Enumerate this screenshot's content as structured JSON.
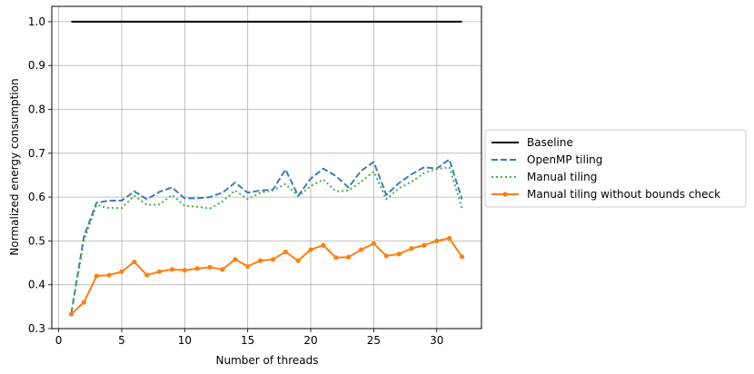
{
  "chart_data": {
    "type": "line",
    "title": "",
    "xlabel": "Number of threads",
    "ylabel": "Normalized energy consumption",
    "xlim": [
      -0.55,
      33.55
    ],
    "ylim": [
      0.3,
      1.035
    ],
    "xticks": [
      0,
      5,
      10,
      15,
      20,
      25,
      30
    ],
    "yticks": [
      0.3,
      0.4,
      0.5,
      0.6,
      0.7,
      0.8,
      0.9,
      1.0
    ],
    "xtick_labels": [
      "0",
      "5",
      "10",
      "15",
      "20",
      "25",
      "30"
    ],
    "ytick_labels": [
      "0.3",
      "0.4",
      "0.5",
      "0.6",
      "0.7",
      "0.8",
      "0.9",
      "1.0"
    ],
    "grid": true,
    "legend_position": "outside-right",
    "x": [
      1,
      2,
      3,
      4,
      5,
      6,
      7,
      8,
      9,
      10,
      11,
      12,
      13,
      14,
      15,
      16,
      17,
      18,
      19,
      20,
      21,
      22,
      23,
      24,
      25,
      26,
      27,
      28,
      29,
      30,
      31,
      32
    ],
    "series": [
      {
        "name": "Baseline",
        "color": "#000000",
        "style": "solid",
        "marker": "none",
        "values": [
          1,
          1,
          1,
          1,
          1,
          1,
          1,
          1,
          1,
          1,
          1,
          1,
          1,
          1,
          1,
          1,
          1,
          1,
          1,
          1,
          1,
          1,
          1,
          1,
          1,
          1,
          1,
          1,
          1,
          1,
          1,
          1
        ]
      },
      {
        "name": "OpenMP tiling",
        "color": "#3a7fb5",
        "style": "dashed",
        "marker": "none",
        "values": [
          0.335,
          0.51,
          0.587,
          0.592,
          0.592,
          0.613,
          0.595,
          0.612,
          0.622,
          0.597,
          0.597,
          0.6,
          0.61,
          0.633,
          0.61,
          0.615,
          0.617,
          0.663,
          0.603,
          0.642,
          0.665,
          0.648,
          0.622,
          0.66,
          0.68,
          0.605,
          0.632,
          0.652,
          0.668,
          0.665,
          0.686,
          0.595
        ]
      },
      {
        "name": "Manual tiling",
        "color": "#4caf50",
        "style": "dotted",
        "marker": "none",
        "values": [
          0.335,
          0.5,
          0.582,
          0.575,
          0.575,
          0.603,
          0.582,
          0.583,
          0.605,
          0.58,
          0.578,
          0.574,
          0.59,
          0.615,
          0.595,
          0.61,
          0.615,
          0.63,
          0.602,
          0.625,
          0.64,
          0.613,
          0.615,
          0.635,
          0.658,
          0.595,
          0.62,
          0.635,
          0.655,
          0.664,
          0.668,
          0.575
        ]
      },
      {
        "name": "Manual tiling without bounds check",
        "color": "#ff7f0e",
        "style": "solid",
        "marker": "circle",
        "values": [
          0.333,
          0.36,
          0.42,
          0.422,
          0.43,
          0.452,
          0.422,
          0.43,
          0.435,
          0.433,
          0.437,
          0.44,
          0.435,
          0.458,
          0.442,
          0.455,
          0.458,
          0.475,
          0.455,
          0.48,
          0.49,
          0.462,
          0.463,
          0.48,
          0.494,
          0.466,
          0.47,
          0.483,
          0.49,
          0.5,
          0.506,
          0.464
        ]
      }
    ]
  }
}
